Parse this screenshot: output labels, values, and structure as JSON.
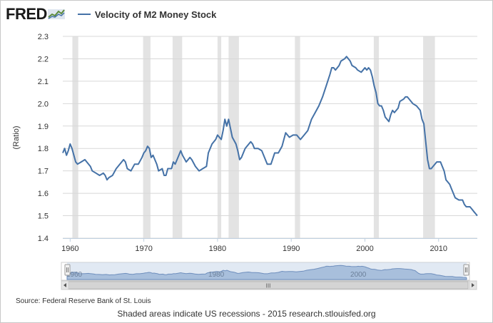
{
  "header": {
    "logo_text": "FRED",
    "legend_label": "Velocity of M2 Money Stock"
  },
  "colors": {
    "series": "#4572a7",
    "recession": "#e3e3e3",
    "navigator_fill": "#a8bfdc",
    "navigator_mask": "#c9d7ea"
  },
  "footer": {
    "source": "Source: Federal Reserve Bank of St. Louis",
    "note": "Shaded areas indicate US recessions - 2015 research.stlouisfed.org"
  },
  "navigator": {
    "labels": [
      "1960",
      "1980",
      "2000"
    ],
    "scroll_grip": "III"
  },
  "chart_data": {
    "type": "line",
    "ylabel": "(Ratio)",
    "xlim": [
      1959.0,
      2015.25
    ],
    "ylim": [
      1.4,
      2.3
    ],
    "yticks": [
      "1.4",
      "1.5",
      "1.6",
      "1.7",
      "1.8",
      "1.9",
      "2.0",
      "2.1",
      "2.2",
      "2.3"
    ],
    "xticks": [
      "1960",
      "1970",
      "1980",
      "1990",
      "2000",
      "2010"
    ],
    "grid": "horizontal",
    "legend": "top",
    "recessions": [
      [
        1960.3,
        1961.1
      ],
      [
        1969.9,
        1970.9
      ],
      [
        1973.9,
        1975.2
      ],
      [
        1980.0,
        1980.5
      ],
      [
        1981.5,
        1982.9
      ],
      [
        1990.5,
        1991.2
      ],
      [
        2001.2,
        2001.9
      ],
      [
        2007.9,
        2009.5
      ]
    ],
    "series": [
      {
        "name": "Velocity of M2 Money Stock",
        "points": [
          [
            1959.0,
            1.78
          ],
          [
            1959.25,
            1.8
          ],
          [
            1959.5,
            1.77
          ],
          [
            1959.75,
            1.79
          ],
          [
            1960.0,
            1.82
          ],
          [
            1960.25,
            1.8
          ],
          [
            1960.5,
            1.77
          ],
          [
            1960.75,
            1.74
          ],
          [
            1961.0,
            1.73
          ],
          [
            1961.5,
            1.74
          ],
          [
            1962.0,
            1.75
          ],
          [
            1962.25,
            1.74
          ],
          [
            1962.75,
            1.72
          ],
          [
            1963.0,
            1.7
          ],
          [
            1963.5,
            1.69
          ],
          [
            1964.0,
            1.68
          ],
          [
            1964.5,
            1.69
          ],
          [
            1964.75,
            1.68
          ],
          [
            1965.0,
            1.66
          ],
          [
            1965.25,
            1.67
          ],
          [
            1965.75,
            1.68
          ],
          [
            1966.25,
            1.71
          ],
          [
            1966.75,
            1.73
          ],
          [
            1967.25,
            1.75
          ],
          [
            1967.5,
            1.74
          ],
          [
            1967.75,
            1.71
          ],
          [
            1968.25,
            1.7
          ],
          [
            1968.75,
            1.73
          ],
          [
            1969.25,
            1.73
          ],
          [
            1969.75,
            1.76
          ],
          [
            1970.0,
            1.78
          ],
          [
            1970.25,
            1.79
          ],
          [
            1970.5,
            1.81
          ],
          [
            1970.75,
            1.8
          ],
          [
            1971.0,
            1.76
          ],
          [
            1971.25,
            1.77
          ],
          [
            1971.75,
            1.73
          ],
          [
            1972.0,
            1.7
          ],
          [
            1972.5,
            1.71
          ],
          [
            1972.75,
            1.68
          ],
          [
            1973.0,
            1.68
          ],
          [
            1973.25,
            1.71
          ],
          [
            1973.75,
            1.71
          ],
          [
            1974.0,
            1.74
          ],
          [
            1974.25,
            1.73
          ],
          [
            1974.75,
            1.77
          ],
          [
            1975.0,
            1.79
          ],
          [
            1975.25,
            1.77
          ],
          [
            1975.75,
            1.74
          ],
          [
            1976.25,
            1.76
          ],
          [
            1976.5,
            1.75
          ],
          [
            1977.0,
            1.72
          ],
          [
            1977.5,
            1.7
          ],
          [
            1978.0,
            1.71
          ],
          [
            1978.5,
            1.72
          ],
          [
            1978.75,
            1.78
          ],
          [
            1979.25,
            1.82
          ],
          [
            1979.75,
            1.84
          ],
          [
            1980.0,
            1.86
          ],
          [
            1980.5,
            1.84
          ],
          [
            1980.75,
            1.88
          ],
          [
            1981.0,
            1.93
          ],
          [
            1981.25,
            1.9
          ],
          [
            1981.5,
            1.93
          ],
          [
            1981.75,
            1.89
          ],
          [
            1982.0,
            1.85
          ],
          [
            1982.5,
            1.82
          ],
          [
            1982.75,
            1.79
          ],
          [
            1983.0,
            1.75
          ],
          [
            1983.25,
            1.76
          ],
          [
            1983.75,
            1.8
          ],
          [
            1984.25,
            1.82
          ],
          [
            1984.5,
            1.83
          ],
          [
            1984.75,
            1.82
          ],
          [
            1985.0,
            1.8
          ],
          [
            1985.5,
            1.8
          ],
          [
            1986.0,
            1.79
          ],
          [
            1986.5,
            1.75
          ],
          [
            1986.75,
            1.73
          ],
          [
            1987.25,
            1.73
          ],
          [
            1987.75,
            1.78
          ],
          [
            1988.25,
            1.78
          ],
          [
            1988.75,
            1.81
          ],
          [
            1989.25,
            1.87
          ],
          [
            1989.5,
            1.86
          ],
          [
            1989.75,
            1.85
          ],
          [
            1990.25,
            1.86
          ],
          [
            1990.75,
            1.86
          ],
          [
            1991.25,
            1.84
          ],
          [
            1991.75,
            1.86
          ],
          [
            1992.25,
            1.88
          ],
          [
            1992.75,
            1.93
          ],
          [
            1993.25,
            1.96
          ],
          [
            1993.75,
            1.99
          ],
          [
            1994.25,
            2.03
          ],
          [
            1994.75,
            2.08
          ],
          [
            1995.25,
            2.13
          ],
          [
            1995.5,
            2.16
          ],
          [
            1995.75,
            2.16
          ],
          [
            1996.0,
            2.15
          ],
          [
            1996.25,
            2.16
          ],
          [
            1996.5,
            2.17
          ],
          [
            1996.75,
            2.19
          ],
          [
            1997.25,
            2.2
          ],
          [
            1997.5,
            2.21
          ],
          [
            1997.75,
            2.2
          ],
          [
            1998.0,
            2.19
          ],
          [
            1998.25,
            2.17
          ],
          [
            1998.75,
            2.16
          ],
          [
            1999.0,
            2.15
          ],
          [
            1999.5,
            2.14
          ],
          [
            1999.75,
            2.15
          ],
          [
            2000.0,
            2.16
          ],
          [
            2000.25,
            2.15
          ],
          [
            2000.5,
            2.16
          ],
          [
            2000.75,
            2.15
          ],
          [
            2001.0,
            2.12
          ],
          [
            2001.25,
            2.08
          ],
          [
            2001.5,
            2.05
          ],
          [
            2001.75,
            2.0
          ],
          [
            2002.0,
            1.99
          ],
          [
            2002.25,
            1.99
          ],
          [
            2002.5,
            1.97
          ],
          [
            2002.75,
            1.94
          ],
          [
            2003.0,
            1.93
          ],
          [
            2003.25,
            1.92
          ],
          [
            2003.5,
            1.95
          ],
          [
            2003.75,
            1.97
          ],
          [
            2004.0,
            1.96
          ],
          [
            2004.5,
            1.98
          ],
          [
            2004.75,
            2.01
          ],
          [
            2005.25,
            2.02
          ],
          [
            2005.5,
            2.03
          ],
          [
            2005.75,
            2.03
          ],
          [
            2006.0,
            2.02
          ],
          [
            2006.5,
            2.0
          ],
          [
            2007.0,
            1.99
          ],
          [
            2007.5,
            1.97
          ],
          [
            2007.75,
            1.93
          ],
          [
            2008.0,
            1.91
          ],
          [
            2008.25,
            1.83
          ],
          [
            2008.5,
            1.75
          ],
          [
            2008.75,
            1.71
          ],
          [
            2009.0,
            1.71
          ],
          [
            2009.25,
            1.72
          ],
          [
            2009.5,
            1.73
          ],
          [
            2009.75,
            1.74
          ],
          [
            2010.25,
            1.74
          ],
          [
            2010.5,
            1.72
          ],
          [
            2010.75,
            1.7
          ],
          [
            2011.0,
            1.66
          ],
          [
            2011.5,
            1.64
          ],
          [
            2011.75,
            1.62
          ],
          [
            2012.25,
            1.58
          ],
          [
            2012.75,
            1.57
          ],
          [
            2013.25,
            1.57
          ],
          [
            2013.5,
            1.55
          ],
          [
            2013.75,
            1.54
          ],
          [
            2014.25,
            1.54
          ],
          [
            2014.5,
            1.53
          ],
          [
            2014.75,
            1.52
          ],
          [
            2015.0,
            1.51
          ],
          [
            2015.25,
            1.5
          ]
        ]
      }
    ]
  }
}
